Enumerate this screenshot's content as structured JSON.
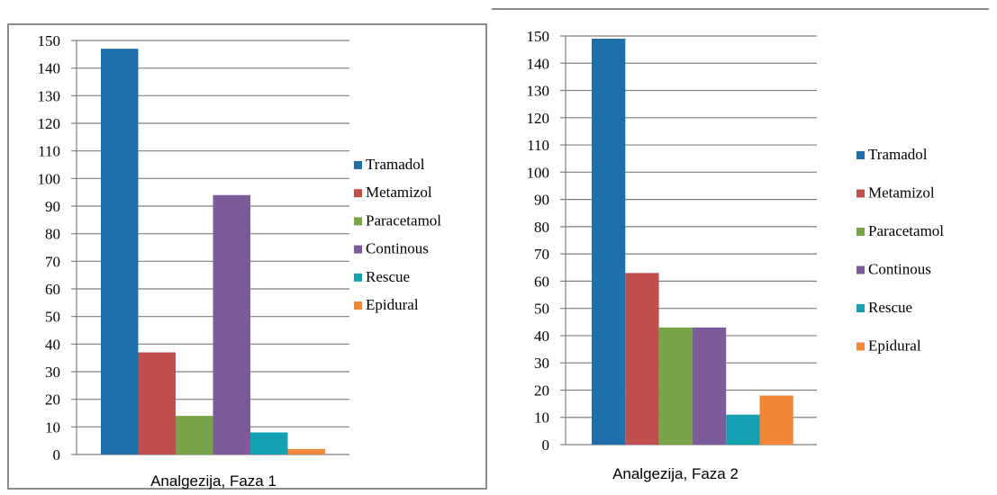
{
  "chart_data": [
    {
      "type": "bar",
      "categories": [
        "Analgezija, Faza 1"
      ],
      "series": [
        {
          "name": "Tramadol",
          "values": [
            147
          ]
        },
        {
          "name": "Metamizol",
          "values": [
            37
          ]
        },
        {
          "name": "Paracetamol",
          "values": [
            14
          ]
        },
        {
          "name": "Continous",
          "values": [
            94
          ]
        },
        {
          "name": "Rescue",
          "values": [
            8
          ]
        },
        {
          "name": "Epidural",
          "values": [
            2
          ]
        }
      ],
      "xlabel": "",
      "ylabel": "",
      "ylim": [
        0,
        150
      ],
      "yticks": [
        0,
        10,
        20,
        30,
        40,
        50,
        60,
        70,
        80,
        90,
        100,
        110,
        120,
        130,
        140,
        150
      ],
      "grid": "horizontal",
      "legend": "right"
    },
    {
      "type": "bar",
      "categories": [
        "Analgezija, Faza 2"
      ],
      "series": [
        {
          "name": "Tramadol",
          "values": [
            149
          ]
        },
        {
          "name": "Metamizol",
          "values": [
            63
          ]
        },
        {
          "name": "Paracetamol",
          "values": [
            43
          ]
        },
        {
          "name": "Continous",
          "values": [
            43
          ]
        },
        {
          "name": "Rescue",
          "values": [
            11
          ]
        },
        {
          "name": "Epidural",
          "values": [
            18
          ]
        }
      ],
      "xlabel": "",
      "ylabel": "",
      "ylim": [
        0,
        150
      ],
      "yticks": [
        0,
        10,
        20,
        30,
        40,
        50,
        60,
        70,
        80,
        90,
        100,
        110,
        120,
        130,
        140,
        150
      ],
      "grid": "horizontal",
      "legend": "right"
    }
  ],
  "colors": {
    "Tramadol": "#1f6fab",
    "Metamizol": "#c0504d",
    "Paracetamol": "#78a447",
    "Continous": "#7b5b9a",
    "Rescue": "#14a2b3",
    "Epidural": "#f2873a"
  }
}
